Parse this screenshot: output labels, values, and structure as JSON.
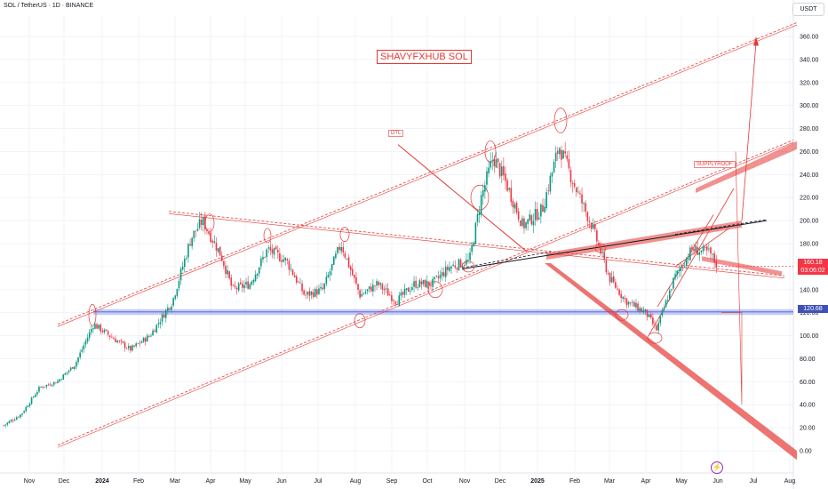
{
  "header": {
    "symbol_line": "SOL / TetherUS · 1D · BINANCE",
    "currency": "USDT"
  },
  "annotations": {
    "title": "SHAVYFXHUB SOL",
    "dtl": "DTL",
    "supplyroof": "SUPPLYROOF"
  },
  "price_labels": {
    "last": "160.18",
    "countdown": "03:06:02",
    "support": "120.68"
  },
  "colors": {
    "up": "#089981",
    "down": "#f23645",
    "drawing": "#e53935",
    "support_band": "#5b6ee1",
    "last_price_bg": "#f23645",
    "support_label_bg": "#3f51b5"
  },
  "chart_data": {
    "type": "candlestick",
    "ylim": [
      -20,
      370
    ],
    "y_ticks": [
      0,
      20,
      40,
      60,
      80,
      100,
      120,
      140,
      160,
      180,
      200,
      220,
      240,
      260,
      280,
      300,
      320,
      340,
      360
    ],
    "y_tick_labels": [
      "0.00",
      "20.00",
      "40.00",
      "60.00",
      "80.00",
      "100.00",
      "120.00",
      "140.00",
      "160.00",
      "180.00",
      "200.00",
      "220.00",
      "240.00",
      "260.00",
      "280.00",
      "300.00",
      "320.00",
      "340.00",
      "360.00"
    ],
    "x_labels": [
      "Nov",
      "Dec",
      "2024",
      "Feb",
      "Mar",
      "Apr",
      "May",
      "Jun",
      "Jul",
      "Aug",
      "Sep",
      "Oct",
      "Nov",
      "Dec",
      "2025",
      "Feb",
      "Mar",
      "Apr",
      "May",
      "Jun",
      "Jul",
      "Aug"
    ],
    "x_label_months": [
      0,
      1,
      2,
      3,
      4,
      5,
      6,
      7,
      8,
      9,
      10,
      11,
      12,
      13,
      14,
      15,
      16,
      17,
      18,
      19,
      20,
      21
    ],
    "x_start": "2023-10-09",
    "last_price": 160.18,
    "support_level": 120.68,
    "approx_close_path": [
      [
        "2023-10-09",
        22
      ],
      [
        "2023-10-25",
        32
      ],
      [
        "2023-11-10",
        55
      ],
      [
        "2023-11-25",
        60
      ],
      [
        "2023-12-10",
        75
      ],
      [
        "2023-12-25",
        110
      ],
      [
        "2024-01-10",
        98
      ],
      [
        "2024-01-25",
        88
      ],
      [
        "2024-02-10",
        100
      ],
      [
        "2024-02-28",
        130
      ],
      [
        "2024-03-15",
        185
      ],
      [
        "2024-03-25",
        200
      ],
      [
        "2024-04-10",
        170
      ],
      [
        "2024-04-20",
        140
      ],
      [
        "2024-05-05",
        145
      ],
      [
        "2024-05-20",
        175
      ],
      [
        "2024-06-05",
        165
      ],
      [
        "2024-06-20",
        135
      ],
      [
        "2024-07-05",
        140
      ],
      [
        "2024-07-20",
        180
      ],
      [
        "2024-08-05",
        135
      ],
      [
        "2024-08-20",
        145
      ],
      [
        "2024-09-05",
        130
      ],
      [
        "2024-09-20",
        145
      ],
      [
        "2024-10-05",
        145
      ],
      [
        "2024-10-20",
        160
      ],
      [
        "2024-11-05",
        165
      ],
      [
        "2024-11-15",
        220
      ],
      [
        "2024-11-25",
        255
      ],
      [
        "2024-12-05",
        235
      ],
      [
        "2024-12-20",
        195
      ],
      [
        "2025-01-05",
        210
      ],
      [
        "2025-01-19",
        265
      ],
      [
        "2025-02-01",
        230
      ],
      [
        "2025-02-15",
        195
      ],
      [
        "2025-03-01",
        150
      ],
      [
        "2025-03-15",
        130
      ],
      [
        "2025-04-01",
        120
      ],
      [
        "2025-04-10",
        105
      ],
      [
        "2025-04-25",
        150
      ],
      [
        "2025-05-10",
        175
      ],
      [
        "2025-05-25",
        172
      ],
      [
        "2025-06-01",
        160
      ]
    ]
  }
}
